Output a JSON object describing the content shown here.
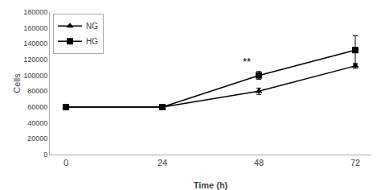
{
  "chart_data": {
    "type": "line",
    "x": [
      0,
      24,
      48,
      72
    ],
    "series": [
      {
        "name": "NG",
        "color": "#000000",
        "marker": "triangle",
        "values": [
          60000,
          60000,
          80000,
          112000
        ],
        "yerr": [
          1500,
          1500,
          4000,
          3000
        ]
      },
      {
        "name": "HG",
        "color": "#000000",
        "marker": "square",
        "values": [
          60000,
          60000,
          100000,
          132000
        ],
        "yerr": [
          1500,
          1500,
          5000,
          18000
        ]
      }
    ],
    "xlabel": "Time (h)",
    "ylabel": "Cells",
    "xlim": [
      -4,
      76
    ],
    "xticks": [
      0,
      24,
      48,
      72
    ],
    "ylim": [
      0,
      180000
    ],
    "yticks": [
      0,
      20000,
      40000,
      60000,
      80000,
      100000,
      120000,
      140000,
      160000,
      180000
    ],
    "annotations": [
      {
        "text": "**",
        "x": 45,
        "y": 108000
      }
    ],
    "legend": "upper left",
    "grid": false
  }
}
